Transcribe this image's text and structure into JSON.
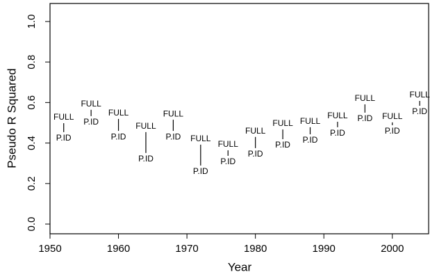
{
  "chart_data": {
    "type": "range",
    "x_label": "Year",
    "y_label": "Pseudo R Squared",
    "x": [
      1952,
      1956,
      1960,
      1964,
      1968,
      1972,
      1976,
      1980,
      1984,
      1988,
      1992,
      1996,
      2000,
      2004
    ],
    "series": [
      {
        "name": "FULL",
        "color": "#000000",
        "values": [
          0.498,
          0.564,
          0.519,
          0.454,
          0.515,
          0.392,
          0.364,
          0.43,
          0.467,
          0.478,
          0.505,
          0.591,
          0.502,
          0.608
        ]
      },
      {
        "name": "P.ID",
        "color": "#000000",
        "values": [
          0.454,
          0.533,
          0.46,
          0.351,
          0.46,
          0.289,
          0.337,
          0.375,
          0.419,
          0.443,
          0.478,
          0.55,
          0.488,
          0.584
        ]
      }
    ],
    "xlim": [
      1950,
      2005.3
    ],
    "ylim": [
      -0.048,
      1.089
    ],
    "xticks": [
      1950,
      1960,
      1970,
      1980,
      1990,
      2000
    ],
    "yticks": [
      {
        "value": 0,
        "label": "0.0"
      },
      {
        "value": 0.2,
        "label": "0.2"
      },
      {
        "value": 0.4,
        "label": "0.4"
      },
      {
        "value": 0.6,
        "label": "0.6"
      },
      {
        "value": 0.8,
        "label": "0.8"
      },
      {
        "value": 1,
        "label": "1.0"
      }
    ]
  }
}
